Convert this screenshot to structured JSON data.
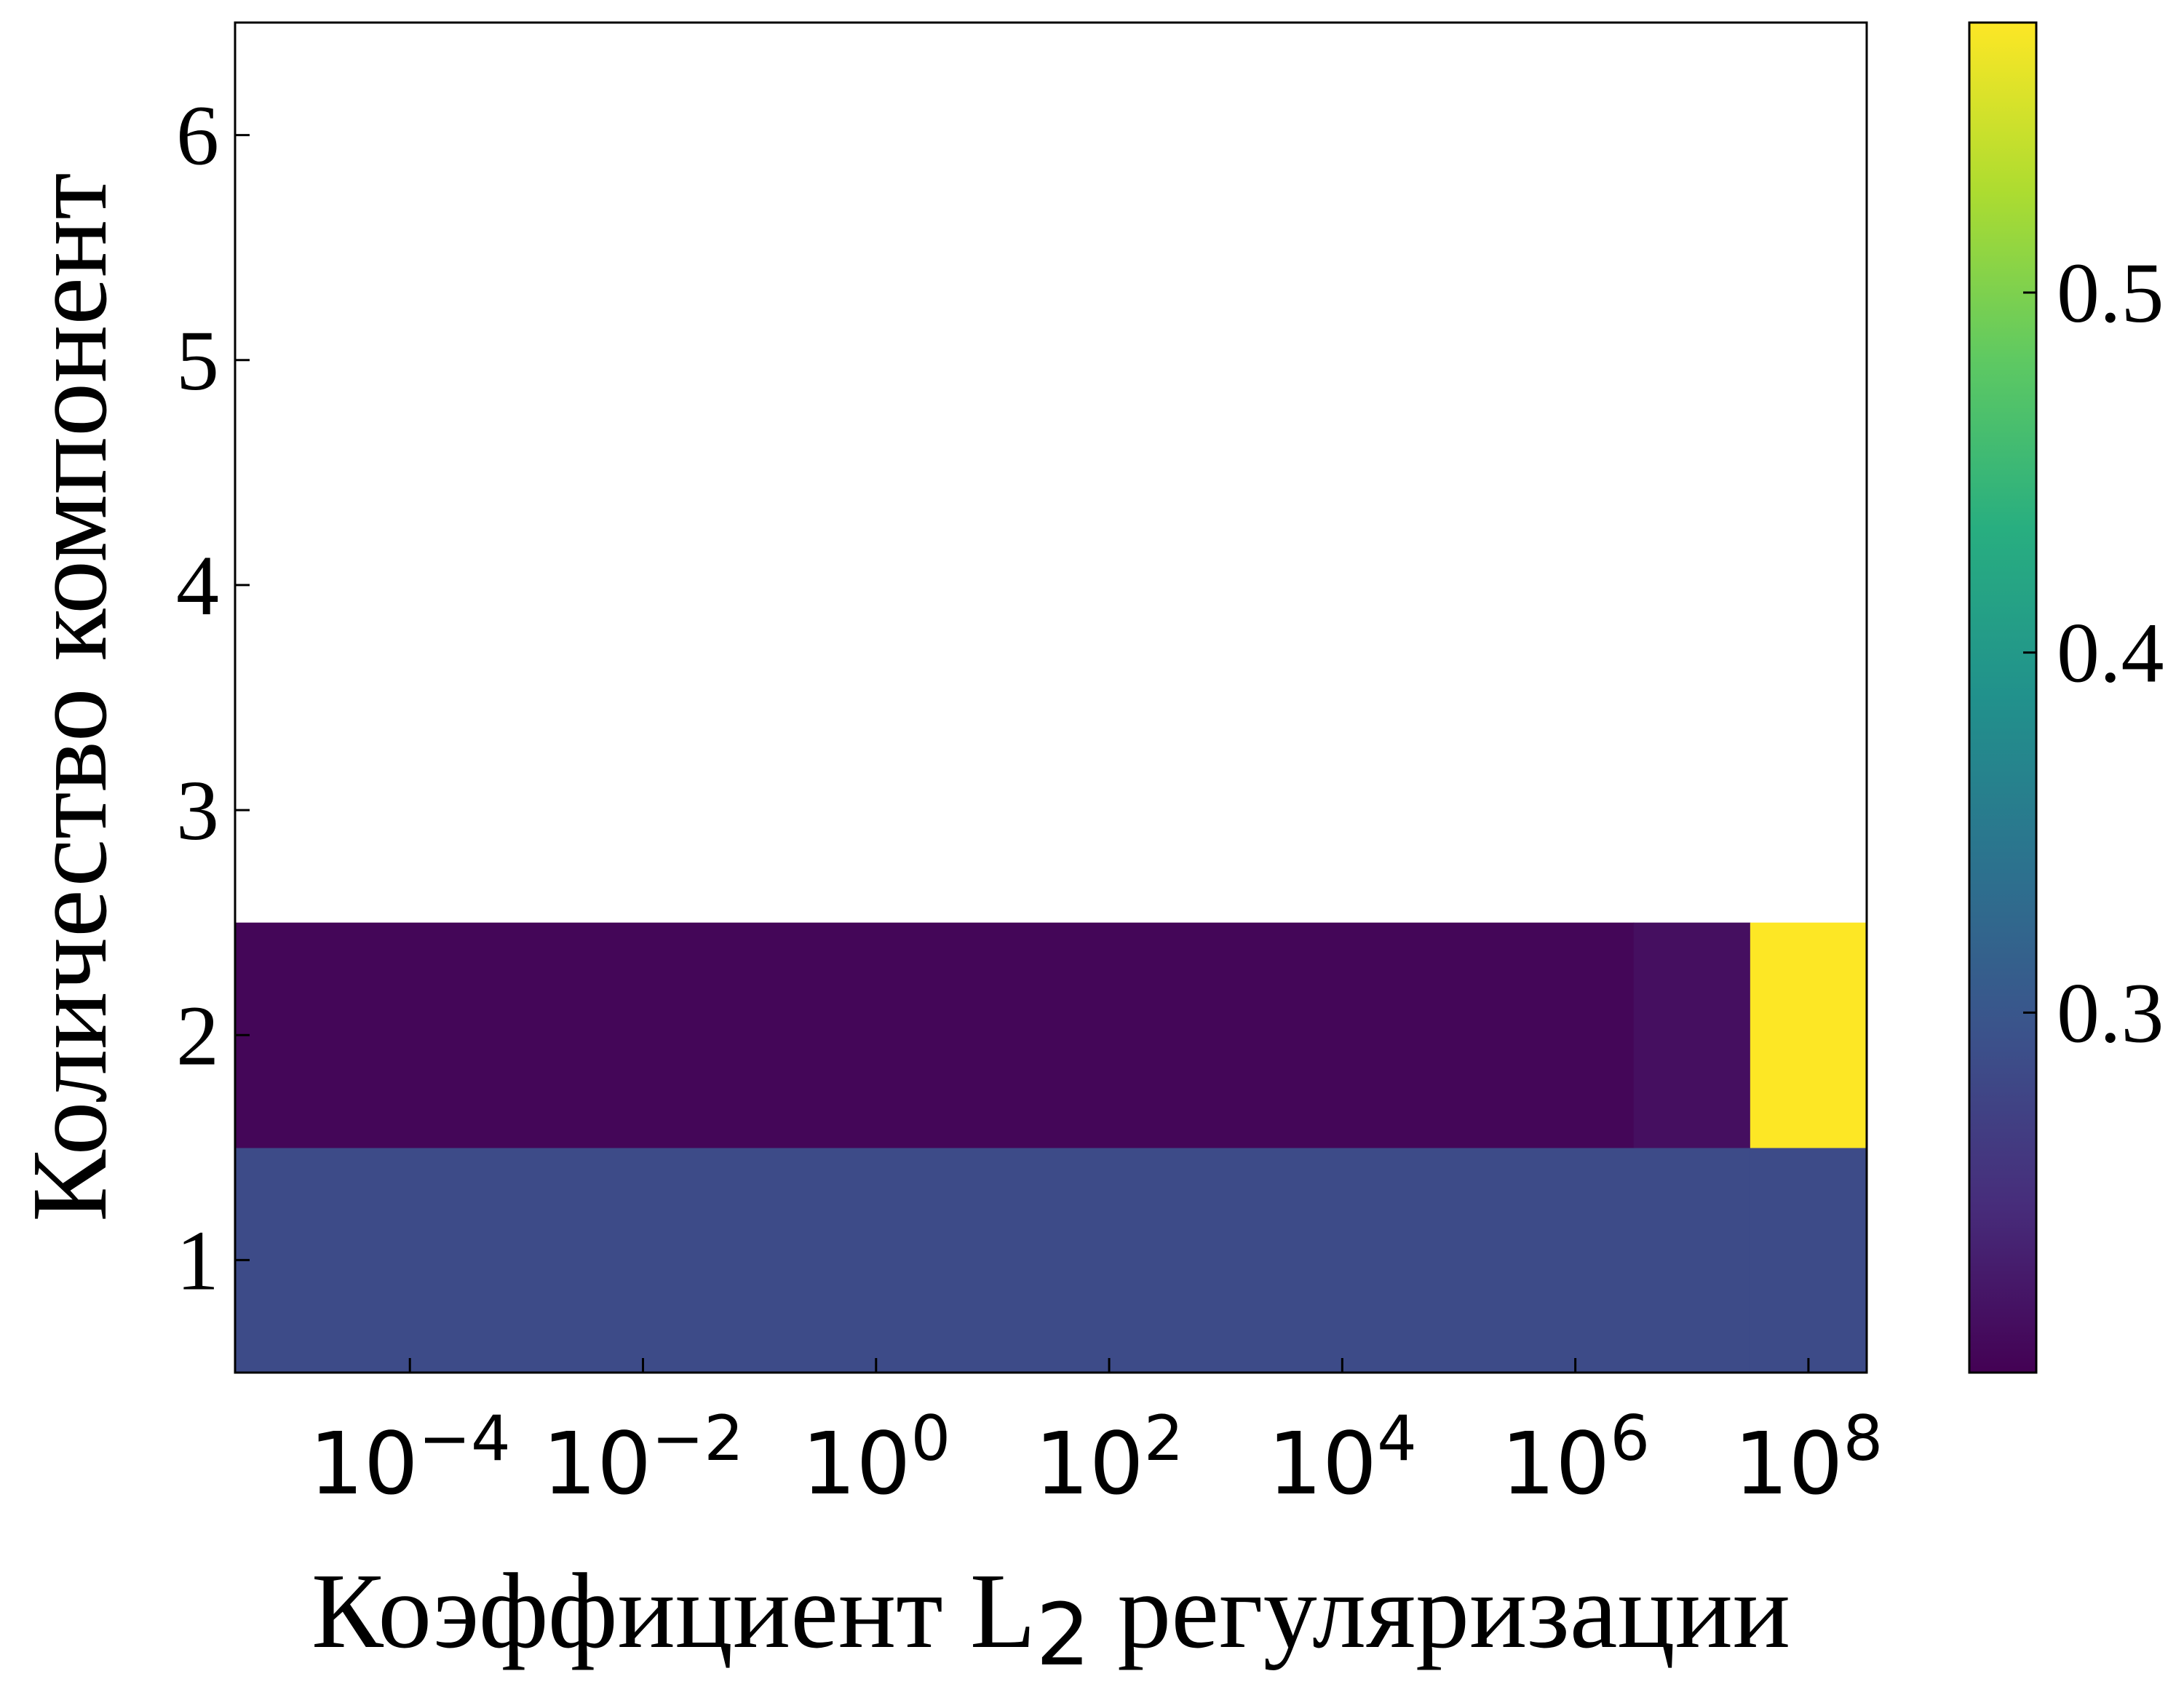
{
  "chart_data": {
    "type": "heatmap",
    "title": "",
    "xlabel": "Коэффициент L",
    "xlabel_sub": "2",
    "xlabel_suffix": " регуляризации",
    "ylabel": "Количество компонент",
    "x_scale": "log",
    "x_tick_exponents": [
      -4,
      -2,
      0,
      2,
      4,
      6,
      8
    ],
    "x_tick_base": "10",
    "x_tick_labels": [
      "10−4",
      "10−2",
      "100",
      "102",
      "104",
      "106",
      "108"
    ],
    "y_ticks": [
      1,
      2,
      3,
      4,
      5,
      6
    ],
    "y_tick_labels": [
      "1",
      "2",
      "3",
      "4",
      "5",
      "6"
    ],
    "ylim": [
      0.5,
      6.5
    ],
    "xlim_log10": [
      -5.5,
      8.5
    ],
    "x_cell_log10_edges": [
      -5.5,
      6.5,
      7.5,
      8.5
    ],
    "y_rows": [
      1,
      2
    ],
    "values": [
      [
        0.285,
        0.285,
        0.285
      ],
      [
        0.205,
        0.215,
        0.575
      ]
    ],
    "colormap": "viridis",
    "colorbar": {
      "vmin": 0.2,
      "vmax": 0.575,
      "ticks": [
        0.3,
        0.4,
        0.5
      ],
      "tick_labels": [
        "0.3",
        "0.4",
        "0.5"
      ]
    }
  }
}
